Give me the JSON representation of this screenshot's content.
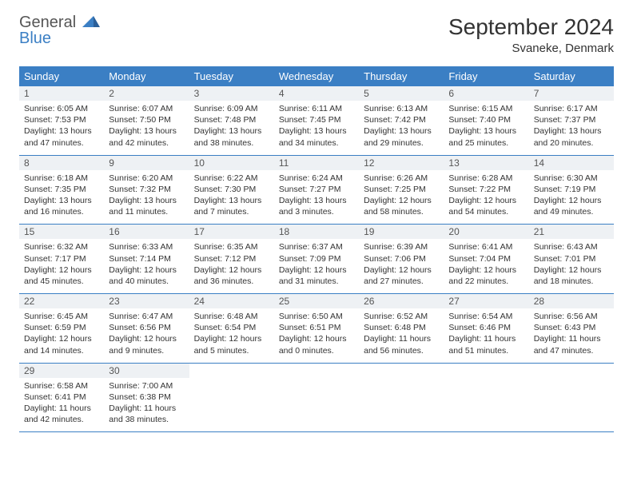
{
  "logo": {
    "text1": "General",
    "text2": "Blue"
  },
  "title": "September 2024",
  "location": "Svaneke, Denmark",
  "header_color": "#3b7fc4",
  "daynum_bg": "#eef1f4",
  "border_color": "#3b7fc4",
  "text_color": "#333333",
  "day_names": [
    "Sunday",
    "Monday",
    "Tuesday",
    "Wednesday",
    "Thursday",
    "Friday",
    "Saturday"
  ],
  "weeks": [
    [
      {
        "n": "1",
        "sr": "Sunrise: 6:05 AM",
        "ss": "Sunset: 7:53 PM",
        "dl": "Daylight: 13 hours and 47 minutes."
      },
      {
        "n": "2",
        "sr": "Sunrise: 6:07 AM",
        "ss": "Sunset: 7:50 PM",
        "dl": "Daylight: 13 hours and 42 minutes."
      },
      {
        "n": "3",
        "sr": "Sunrise: 6:09 AM",
        "ss": "Sunset: 7:48 PM",
        "dl": "Daylight: 13 hours and 38 minutes."
      },
      {
        "n": "4",
        "sr": "Sunrise: 6:11 AM",
        "ss": "Sunset: 7:45 PM",
        "dl": "Daylight: 13 hours and 34 minutes."
      },
      {
        "n": "5",
        "sr": "Sunrise: 6:13 AM",
        "ss": "Sunset: 7:42 PM",
        "dl": "Daylight: 13 hours and 29 minutes."
      },
      {
        "n": "6",
        "sr": "Sunrise: 6:15 AM",
        "ss": "Sunset: 7:40 PM",
        "dl": "Daylight: 13 hours and 25 minutes."
      },
      {
        "n": "7",
        "sr": "Sunrise: 6:17 AM",
        "ss": "Sunset: 7:37 PM",
        "dl": "Daylight: 13 hours and 20 minutes."
      }
    ],
    [
      {
        "n": "8",
        "sr": "Sunrise: 6:18 AM",
        "ss": "Sunset: 7:35 PM",
        "dl": "Daylight: 13 hours and 16 minutes."
      },
      {
        "n": "9",
        "sr": "Sunrise: 6:20 AM",
        "ss": "Sunset: 7:32 PM",
        "dl": "Daylight: 13 hours and 11 minutes."
      },
      {
        "n": "10",
        "sr": "Sunrise: 6:22 AM",
        "ss": "Sunset: 7:30 PM",
        "dl": "Daylight: 13 hours and 7 minutes."
      },
      {
        "n": "11",
        "sr": "Sunrise: 6:24 AM",
        "ss": "Sunset: 7:27 PM",
        "dl": "Daylight: 13 hours and 3 minutes."
      },
      {
        "n": "12",
        "sr": "Sunrise: 6:26 AM",
        "ss": "Sunset: 7:25 PM",
        "dl": "Daylight: 12 hours and 58 minutes."
      },
      {
        "n": "13",
        "sr": "Sunrise: 6:28 AM",
        "ss": "Sunset: 7:22 PM",
        "dl": "Daylight: 12 hours and 54 minutes."
      },
      {
        "n": "14",
        "sr": "Sunrise: 6:30 AM",
        "ss": "Sunset: 7:19 PM",
        "dl": "Daylight: 12 hours and 49 minutes."
      }
    ],
    [
      {
        "n": "15",
        "sr": "Sunrise: 6:32 AM",
        "ss": "Sunset: 7:17 PM",
        "dl": "Daylight: 12 hours and 45 minutes."
      },
      {
        "n": "16",
        "sr": "Sunrise: 6:33 AM",
        "ss": "Sunset: 7:14 PM",
        "dl": "Daylight: 12 hours and 40 minutes."
      },
      {
        "n": "17",
        "sr": "Sunrise: 6:35 AM",
        "ss": "Sunset: 7:12 PM",
        "dl": "Daylight: 12 hours and 36 minutes."
      },
      {
        "n": "18",
        "sr": "Sunrise: 6:37 AM",
        "ss": "Sunset: 7:09 PM",
        "dl": "Daylight: 12 hours and 31 minutes."
      },
      {
        "n": "19",
        "sr": "Sunrise: 6:39 AM",
        "ss": "Sunset: 7:06 PM",
        "dl": "Daylight: 12 hours and 27 minutes."
      },
      {
        "n": "20",
        "sr": "Sunrise: 6:41 AM",
        "ss": "Sunset: 7:04 PM",
        "dl": "Daylight: 12 hours and 22 minutes."
      },
      {
        "n": "21",
        "sr": "Sunrise: 6:43 AM",
        "ss": "Sunset: 7:01 PM",
        "dl": "Daylight: 12 hours and 18 minutes."
      }
    ],
    [
      {
        "n": "22",
        "sr": "Sunrise: 6:45 AM",
        "ss": "Sunset: 6:59 PM",
        "dl": "Daylight: 12 hours and 14 minutes."
      },
      {
        "n": "23",
        "sr": "Sunrise: 6:47 AM",
        "ss": "Sunset: 6:56 PM",
        "dl": "Daylight: 12 hours and 9 minutes."
      },
      {
        "n": "24",
        "sr": "Sunrise: 6:48 AM",
        "ss": "Sunset: 6:54 PM",
        "dl": "Daylight: 12 hours and 5 minutes."
      },
      {
        "n": "25",
        "sr": "Sunrise: 6:50 AM",
        "ss": "Sunset: 6:51 PM",
        "dl": "Daylight: 12 hours and 0 minutes."
      },
      {
        "n": "26",
        "sr": "Sunrise: 6:52 AM",
        "ss": "Sunset: 6:48 PM",
        "dl": "Daylight: 11 hours and 56 minutes."
      },
      {
        "n": "27",
        "sr": "Sunrise: 6:54 AM",
        "ss": "Sunset: 6:46 PM",
        "dl": "Daylight: 11 hours and 51 minutes."
      },
      {
        "n": "28",
        "sr": "Sunrise: 6:56 AM",
        "ss": "Sunset: 6:43 PM",
        "dl": "Daylight: 11 hours and 47 minutes."
      }
    ],
    [
      {
        "n": "29",
        "sr": "Sunrise: 6:58 AM",
        "ss": "Sunset: 6:41 PM",
        "dl": "Daylight: 11 hours and 42 minutes."
      },
      {
        "n": "30",
        "sr": "Sunrise: 7:00 AM",
        "ss": "Sunset: 6:38 PM",
        "dl": "Daylight: 11 hours and 38 minutes."
      },
      null,
      null,
      null,
      null,
      null
    ]
  ]
}
